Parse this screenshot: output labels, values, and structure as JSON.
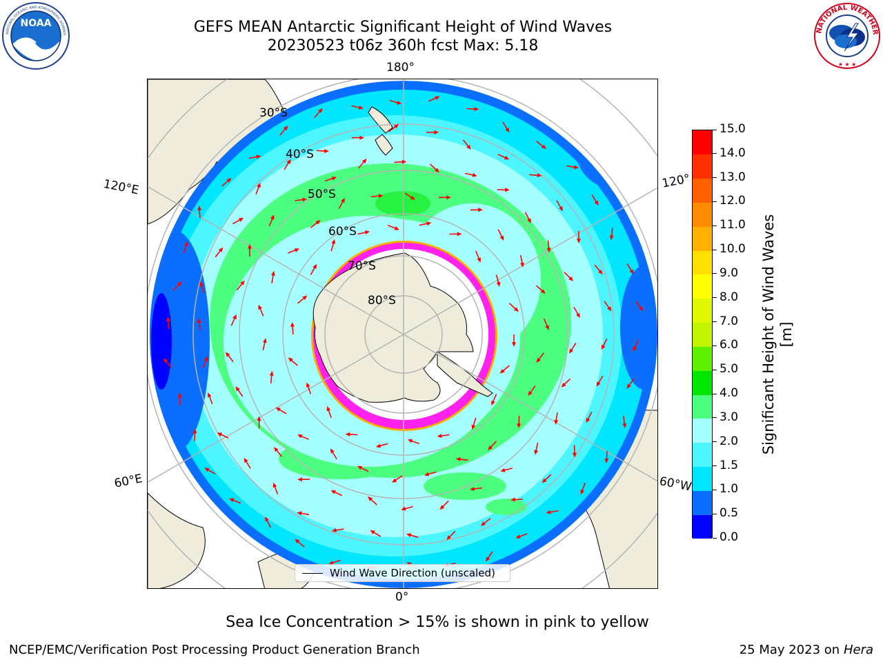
{
  "header": {
    "title_line1": "GEFS MEAN Antarctic Significant Height of Wind Waves",
    "title_line2": "20230523 t06z 360h fcst   Max: 5.18"
  },
  "logos": {
    "left": "NOAA",
    "left_ring_text": "NATIONAL OCEANIC AND ATMOSPHERIC ADMINISTRATION · U.S. DEPARTMENT OF COMMERCE",
    "right_ring_text": "NATIONAL WEATHER SERVICE"
  },
  "map": {
    "projection": "south-polar-stereographic",
    "longitude_labels": {
      "top": "180°",
      "upper_left": "120°E",
      "upper_right": "120°",
      "lower_left": "60°E",
      "lower_right": "60°W",
      "bottom": "0°"
    },
    "latitude_labels": [
      "30°S",
      "40°S",
      "50°S",
      "60°S",
      "70°S",
      "80°S"
    ],
    "colors": {
      "land": "#efecdc",
      "grid": "#b4b4b4",
      "arrow": "#ff0000",
      "sea_ice_inner": "#ff22ee",
      "sea_ice_edge": "#ffaa00"
    }
  },
  "legend": {
    "label": "Wind Wave Direction (unscaled)"
  },
  "colorbar": {
    "title": "Significant Height of Wind Waves [m]",
    "tick_labels": [
      "0.0",
      "0.5",
      "1.0",
      "1.5",
      "2.0",
      "3.0",
      "4.0",
      "5.0",
      "6.0",
      "7.0",
      "8.0",
      "9.0",
      "10.0",
      "11.0",
      "12.0",
      "13.0",
      "14.0",
      "15.0"
    ],
    "colors": [
      "#0000ff",
      "#0a6eff",
      "#00e6ff",
      "#4df5ff",
      "#a6ffff",
      "#4dff80",
      "#00e600",
      "#5ef000",
      "#c3f400",
      "#e0f800",
      "#ffff00",
      "#ffe000",
      "#ffb000",
      "#ff8c00",
      "#ff6000",
      "#ff3000",
      "#ff0000"
    ]
  },
  "caption": "Sea Ice Concentration > 15% is shown in pink to yellow",
  "footer": {
    "left": "NCEP/EMC/Verification Post Processing Product Generation Branch",
    "right_date": "25 May 2023 on",
    "right_host": "Hera"
  }
}
